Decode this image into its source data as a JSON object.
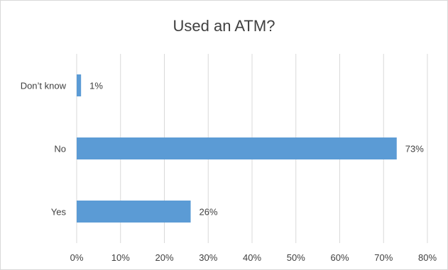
{
  "chart_data": {
    "type": "bar",
    "orientation": "horizontal",
    "title": "Used an ATM?",
    "xlabel": "",
    "ylabel": "",
    "categories": [
      "Don’t know",
      "No",
      "Yes"
    ],
    "values": [
      1,
      73,
      26
    ],
    "data_labels": [
      "1%",
      "73%",
      "26%"
    ],
    "xlim": [
      0,
      80
    ],
    "x_ticks": [
      0,
      10,
      20,
      30,
      40,
      50,
      60,
      70,
      80
    ],
    "x_tick_labels": [
      "0%",
      "10%",
      "20%",
      "30%",
      "40%",
      "50%",
      "60%",
      "70%",
      "80%"
    ],
    "unit": "%",
    "grid": "vertical",
    "legend": "none",
    "bar_color": "#5b9bd5",
    "grid_color": "#d9d9d9"
  }
}
